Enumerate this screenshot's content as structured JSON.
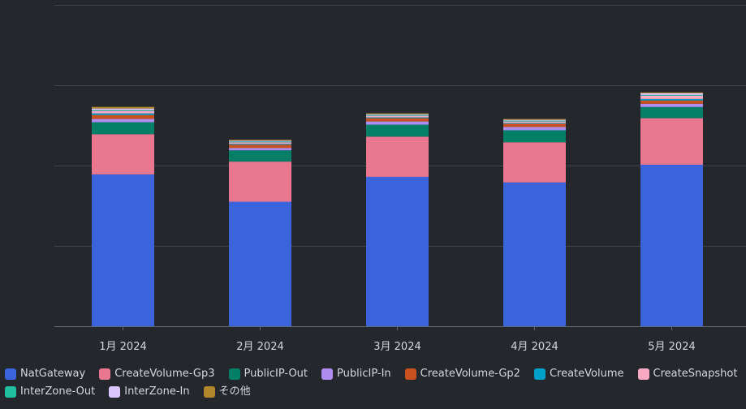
{
  "chart_data": {
    "type": "bar",
    "stacked": true,
    "categories": [
      "1月 2024",
      "2月 2024",
      "3月 2024",
      "4月 2024",
      "5月 2024"
    ],
    "ylim": [
      0,
      400
    ],
    "grid": true,
    "legend_position": "bottom-left",
    "series": [
      {
        "name": "NatGateway",
        "color": "#3b63db",
        "values": [
          189,
          155,
          186,
          179,
          201
        ]
      },
      {
        "name": "CreateVolume-Gp3",
        "color": "#e8778f",
        "values": [
          50,
          50,
          50,
          50,
          58
        ]
      },
      {
        "name": "PublicIP-Out",
        "color": "#037f68",
        "values": [
          15,
          14,
          15,
          15,
          14
        ]
      },
      {
        "name": "PublicIP-In",
        "color": "#b08cf0",
        "values": [
          4,
          3,
          4,
          4,
          4
        ]
      },
      {
        "name": "CreateVolume-Gp2",
        "color": "#c7511f",
        "values": [
          5,
          4,
          4,
          4,
          4
        ]
      },
      {
        "name": "CreateVolume",
        "color": "#00a1c9",
        "values": [
          2,
          1,
          1,
          1,
          2
        ]
      },
      {
        "name": "CreateSnapshot",
        "color": "#f7a8c2",
        "values": [
          3,
          2,
          2,
          2,
          4
        ]
      },
      {
        "name": "InterZone-Out",
        "color": "#1fbf9f",
        "values": [
          1,
          1,
          1,
          1,
          1
        ]
      },
      {
        "name": "InterZone-In",
        "color": "#dcc6ff",
        "values": [
          2,
          1,
          1,
          1,
          2
        ]
      },
      {
        "name": "その他",
        "color": "#b2862b",
        "values": [
          2,
          1,
          1,
          1,
          1
        ]
      }
    ]
  }
}
